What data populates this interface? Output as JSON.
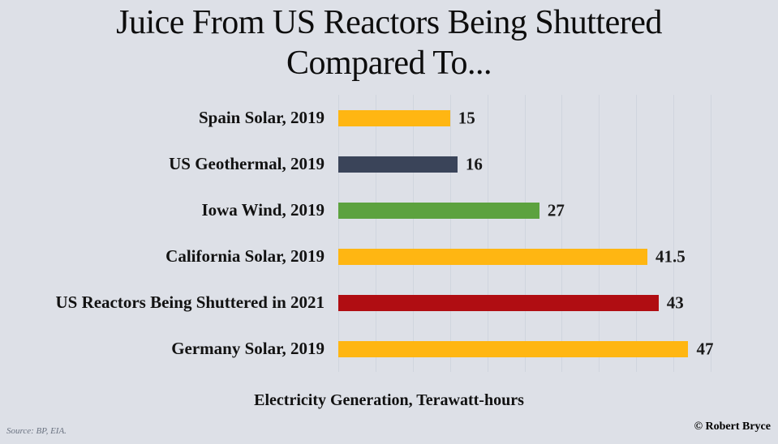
{
  "header": {
    "title_line1": "Juice From US Reactors Being Shuttered",
    "title_line2": "Compared To..."
  },
  "chart_data": {
    "type": "bar",
    "orientation": "horizontal",
    "title": "Juice From US Reactors Being Shuttered Compared To...",
    "categories": [
      "Spain Solar, 2019",
      "US Geothermal, 2019",
      "Iowa Wind, 2019",
      "California Solar, 2019",
      "US Reactors Being Shuttered in 2021",
      "Germany Solar, 2019"
    ],
    "values": [
      15,
      16,
      27,
      41.5,
      43,
      47
    ],
    "value_labels": [
      "15",
      "16",
      "27",
      "41.5",
      "43",
      "47"
    ],
    "bar_colors": [
      "#FFB612",
      "#3A4459",
      "#5CA23F",
      "#FFB612",
      "#B00D12",
      "#FFB612"
    ],
    "xlabel": "Electricity Generation, Terawatt-hours",
    "ylabel": "",
    "xlim": [
      0,
      50
    ],
    "gridline_step": 5,
    "grid": true,
    "legend": false
  },
  "footer": {
    "source": "Source: BP, EIA.",
    "copyright": "© Robert Bryce"
  },
  "colors": {
    "background": "#dde0e7",
    "gridline": "#d0d5de",
    "orange": "#FFB612",
    "navy": "#3A4459",
    "green": "#5CA23F",
    "red": "#B00D12"
  }
}
